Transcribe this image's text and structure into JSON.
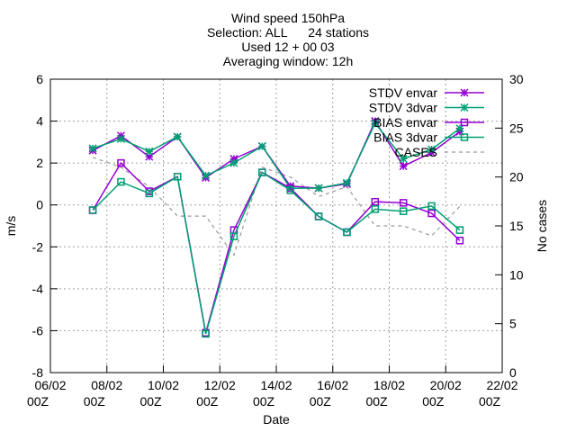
{
  "chart_data": {
    "type": "line",
    "title_lines": [
      "Wind speed 150hPa",
      "Selection: ALL      24 stations",
      "Used 12 + 00 03",
      "Averaging window: 12h"
    ],
    "xlabel": "Date",
    "ylabel": "m/s",
    "y2label": "No cases",
    "xlim": [
      "06/02 00Z",
      "22/02 00Z"
    ],
    "ylim": [
      -8,
      6
    ],
    "y2lim": [
      0,
      30
    ],
    "x_ticks": [
      {
        "top": "06/02",
        "bottom": "00Z"
      },
      {
        "top": "08/02",
        "bottom": "00Z"
      },
      {
        "top": "10/02",
        "bottom": "00Z"
      },
      {
        "top": "12/02",
        "bottom": "00Z"
      },
      {
        "top": "14/02",
        "bottom": "00Z"
      },
      {
        "top": "16/02",
        "bottom": "00Z"
      },
      {
        "top": "18/02",
        "bottom": "00Z"
      },
      {
        "top": "20/02",
        "bottom": "00Z"
      },
      {
        "top": "22/02",
        "bottom": "00Z"
      }
    ],
    "y_ticks": [
      "-8",
      "-6",
      "-4",
      "-2",
      "0",
      "2",
      "4",
      "6"
    ],
    "y2_ticks": [
      "0",
      "5",
      "10",
      "15",
      "20",
      "25",
      "30"
    ],
    "grid": true,
    "legend_position": "top-right",
    "x": [
      "07/02 12Z",
      "08/02 12Z",
      "09/02 12Z",
      "10/02 12Z",
      "11/02 12Z",
      "12/02 12Z",
      "13/02 12Z",
      "14/02 12Z",
      "15/02 12Z",
      "16/02 12Z",
      "17/02 12Z",
      "18/02 12Z",
      "19/02 12Z",
      "20/02 12Z"
    ],
    "series": [
      {
        "name": "STDV envar",
        "axis": "y",
        "color": "#9400d3",
        "marker": "star",
        "dash": "",
        "values": [
          2.6,
          3.3,
          2.3,
          3.25,
          1.3,
          2.2,
          2.8,
          0.9,
          0.8,
          1.0,
          4.0,
          1.85,
          2.5,
          3.5
        ]
      },
      {
        "name": "STDV 3dvar",
        "axis": "y",
        "color": "#009e73",
        "marker": "star",
        "dash": "",
        "values": [
          2.7,
          3.15,
          2.55,
          3.25,
          1.4,
          2.0,
          2.8,
          0.8,
          0.8,
          1.05,
          3.9,
          2.2,
          2.65,
          3.65
        ]
      },
      {
        "name": "BIAS envar",
        "axis": "y",
        "color": "#9400d3",
        "marker": "square",
        "dash": "",
        "values": [
          -0.25,
          2.0,
          0.65,
          1.35,
          -6.1,
          -1.2,
          1.55,
          0.8,
          -0.55,
          -1.3,
          0.15,
          0.1,
          -0.4,
          -1.7
        ]
      },
      {
        "name": "BIAS 3dvar",
        "axis": "y",
        "color": "#009e73",
        "marker": "square",
        "dash": "",
        "values": [
          -0.25,
          1.1,
          0.55,
          1.35,
          -6.15,
          -1.5,
          1.55,
          0.7,
          -0.55,
          -1.3,
          -0.2,
          -0.3,
          -0.05,
          -1.2
        ]
      },
      {
        "name": "CASES",
        "axis": "y2",
        "color": "#999999",
        "marker": "none",
        "dash": "4,4",
        "values": [
          22,
          21,
          19,
          16,
          16,
          12,
          21,
          20,
          18,
          19,
          15,
          15,
          14,
          17
        ]
      }
    ]
  }
}
